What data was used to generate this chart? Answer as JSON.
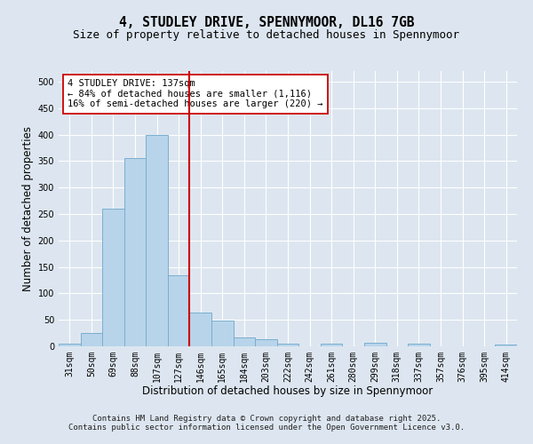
{
  "title1": "4, STUDLEY DRIVE, SPENNYMOOR, DL16 7GB",
  "title2": "Size of property relative to detached houses in Spennymoor",
  "xlabel": "Distribution of detached houses by size in Spennymoor",
  "ylabel": "Number of detached properties",
  "categories": [
    "31sqm",
    "50sqm",
    "69sqm",
    "88sqm",
    "107sqm",
    "127sqm",
    "146sqm",
    "165sqm",
    "184sqm",
    "203sqm",
    "222sqm",
    "242sqm",
    "261sqm",
    "280sqm",
    "299sqm",
    "318sqm",
    "337sqm",
    "357sqm",
    "376sqm",
    "395sqm",
    "414sqm"
  ],
  "values": [
    5,
    25,
    260,
    355,
    400,
    135,
    63,
    48,
    16,
    13,
    5,
    0,
    5,
    0,
    6,
    0,
    5,
    0,
    0,
    0,
    3
  ],
  "bar_color": "#b8d4ea",
  "bar_edge_color": "#7aaed0",
  "vline_x": 5.5,
  "vline_color": "#cc0000",
  "annotation_text": "4 STUDLEY DRIVE: 137sqm\n← 84% of detached houses are smaller (1,116)\n16% of semi-detached houses are larger (220) →",
  "annotation_box_color": "#ffffff",
  "annotation_box_edge": "#cc0000",
  "ylim": [
    0,
    520
  ],
  "yticks": [
    0,
    50,
    100,
    150,
    200,
    250,
    300,
    350,
    400,
    450,
    500
  ],
  "bg_color": "#dde6f0",
  "plot_bg_color": "#dde6f0",
  "footer1": "Contains HM Land Registry data © Crown copyright and database right 2025.",
  "footer2": "Contains public sector information licensed under the Open Government Licence v3.0.",
  "title1_fontsize": 10.5,
  "title2_fontsize": 9,
  "tick_fontsize": 7,
  "label_fontsize": 8.5,
  "annotation_fontsize": 7.5,
  "footer_fontsize": 6.5
}
